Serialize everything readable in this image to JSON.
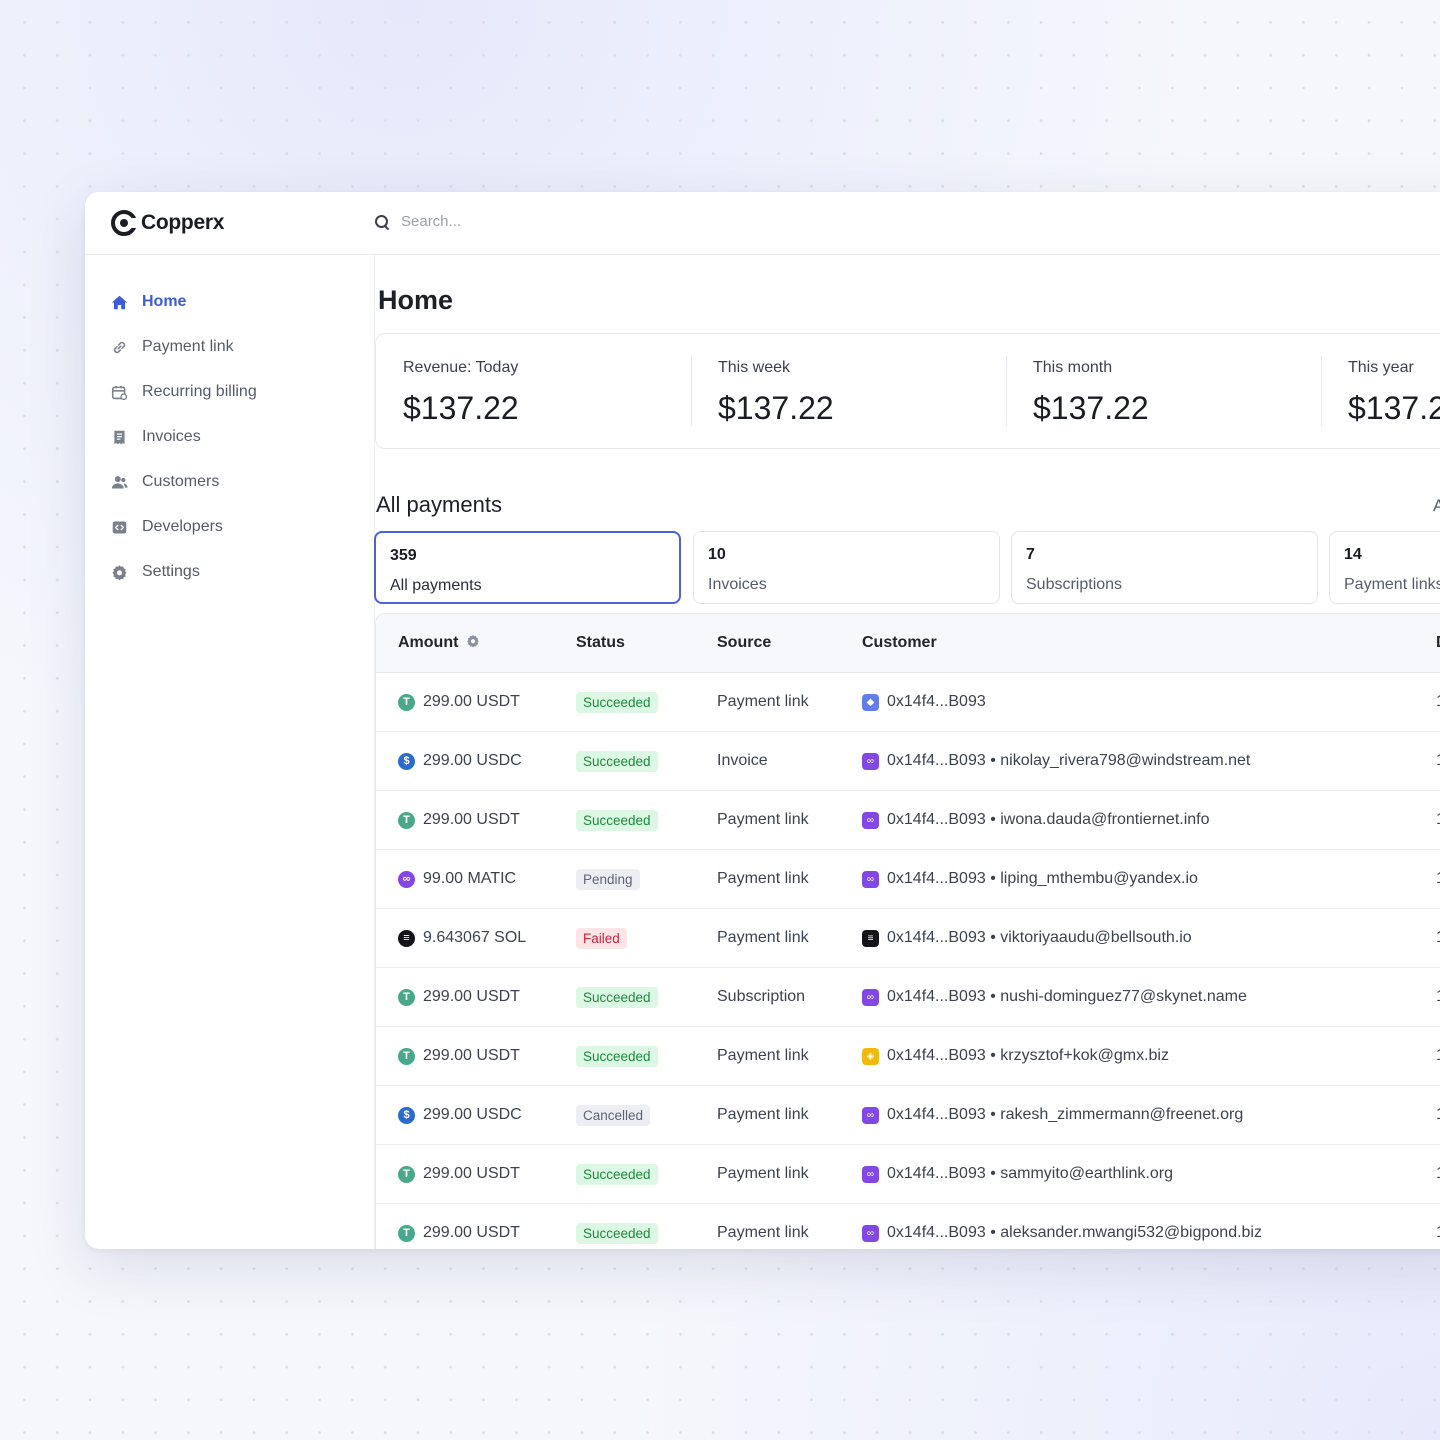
{
  "app": {
    "name": "Copperx"
  },
  "search": {
    "placeholder": "Search..."
  },
  "sidebar": {
    "items": [
      {
        "label": "Home",
        "icon": "home-icon",
        "active": true
      },
      {
        "label": "Payment link",
        "icon": "link-icon"
      },
      {
        "label": "Recurring billing",
        "icon": "calendar-icon"
      },
      {
        "label": "Invoices",
        "icon": "receipt-icon"
      },
      {
        "label": "Customers",
        "icon": "users-icon"
      },
      {
        "label": "Developers",
        "icon": "code-icon"
      },
      {
        "label": "Settings",
        "icon": "gear-icon"
      }
    ]
  },
  "main": {
    "title": "Home",
    "revenue": [
      {
        "label": "Revenue: Today",
        "value": "$137.22"
      },
      {
        "label": "This week",
        "value": "$137.22"
      },
      {
        "label": "This month",
        "value": "$137.22"
      },
      {
        "label": "This year",
        "value": "$137.2"
      }
    ],
    "payments_title": "All payments",
    "payments_right": "A",
    "tabs": [
      {
        "count": "359",
        "label": "All payments",
        "active": true
      },
      {
        "count": "10",
        "label": "Invoices"
      },
      {
        "count": "7",
        "label": "Subscriptions"
      },
      {
        "count": "14",
        "label": "Payment links"
      }
    ],
    "table": {
      "columns": [
        "Amount",
        "Status",
        "Source",
        "Customer",
        "D"
      ],
      "rows": [
        {
          "amount": "299.00 USDT",
          "coin": "usdt",
          "status": "Succeeded",
          "source": "Payment link",
          "wallet": "eth",
          "customer": "0x14f4...B093",
          "date": "1"
        },
        {
          "amount": "299.00 USDC",
          "coin": "usdc",
          "status": "Succeeded",
          "source": "Invoice",
          "wallet": "polygon",
          "customer": "0x14f4...B093 • nikolay_rivera798@windstream.net",
          "date": "1"
        },
        {
          "amount": "299.00 USDT",
          "coin": "usdt",
          "status": "Succeeded",
          "source": "Payment link",
          "wallet": "polygon",
          "customer": "0x14f4...B093 • iwona.dauda@frontiernet.info",
          "date": "1"
        },
        {
          "amount": "99.00 MATIC",
          "coin": "matic",
          "status": "Pending",
          "source": "Payment link",
          "wallet": "polygon",
          "customer": "0x14f4...B093 • liping_mthembu@yandex.io",
          "date": "1"
        },
        {
          "amount": "9.643067 SOL",
          "coin": "sol",
          "status": "Failed",
          "source": "Payment link",
          "wallet": "solana",
          "customer": "0x14f4...B093 • viktoriyaaudu@bellsouth.io",
          "date": "1"
        },
        {
          "amount": "299.00 USDT",
          "coin": "usdt",
          "status": "Succeeded",
          "source": "Subscription",
          "wallet": "polygon",
          "customer": "0x14f4...B093 • nushi-dominguez77@skynet.name",
          "date": "1"
        },
        {
          "amount": "299.00 USDT",
          "coin": "usdt",
          "status": "Succeeded",
          "source": "Payment link",
          "wallet": "bnb",
          "customer": "0x14f4...B093 • krzysztof+kok@gmx.biz",
          "date": "1"
        },
        {
          "amount": "299.00 USDC",
          "coin": "usdc",
          "status": "Cancelled",
          "source": "Payment link",
          "wallet": "polygon",
          "customer": "0x14f4...B093 • rakesh_zimmermann@freenet.org",
          "date": "1"
        },
        {
          "amount": "299.00 USDT",
          "coin": "usdt",
          "status": "Succeeded",
          "source": "Payment link",
          "wallet": "polygon",
          "customer": "0x14f4...B093 • sammyito@earthlink.org",
          "date": "1"
        },
        {
          "amount": "299.00 USDT",
          "coin": "usdt",
          "status": "Succeeded",
          "source": "Payment link",
          "wallet": "polygon",
          "customer": "0x14f4...B093 • aleksander.mwangi532@bigpond.biz",
          "date": "1"
        }
      ]
    }
  },
  "colors": {
    "accent": "#3e5bd8",
    "usdt": "#4aa88a",
    "usdc": "#2a6bcc",
    "matic": "#8247e5",
    "sol": "#14141a",
    "bnb": "#f0b90b",
    "eth": "#627eea"
  }
}
